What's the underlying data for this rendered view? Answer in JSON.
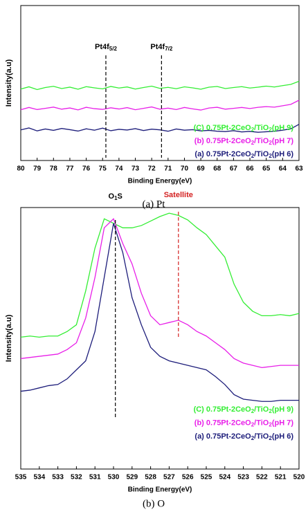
{
  "chart_data": [
    {
      "type": "line",
      "caption": "(a)  Pt",
      "xlabel": "Binding Energy(eV)",
      "ylabel": "Intensity(a.u)",
      "xlim": [
        80,
        63
      ],
      "ylim": [
        10,
        100
      ],
      "xticks": [
        80,
        79,
        78,
        77,
        76,
        75,
        74,
        73,
        72,
        71,
        70,
        69,
        68,
        67,
        66,
        65,
        64,
        63
      ],
      "annotations": [
        {
          "text": "Pt4f5/2",
          "x": 74.8,
          "color": "#000000"
        },
        {
          "text": "Pt4f7/2",
          "x": 71.4,
          "color": "#000000"
        }
      ],
      "x": [
        80,
        79.5,
        79,
        78.5,
        78,
        77.5,
        77,
        76.5,
        76,
        75.5,
        75,
        74.5,
        74,
        73.5,
        73,
        72.5,
        72,
        71.5,
        71,
        70.5,
        70,
        69.5,
        69,
        68.5,
        68,
        67.5,
        67,
        66.5,
        66,
        65.5,
        65,
        64.5,
        64,
        63.5,
        63
      ],
      "series": [
        {
          "name": "(C) 0.75Pt-2CeO2/TiO2(pH 9)",
          "color": "#33ee33",
          "values": [
            51.5,
            52.8,
            51.2,
            52.4,
            53.1,
            51.8,
            52.6,
            51.4,
            52.9,
            52.2,
            51.6,
            53.0,
            52.1,
            52.7,
            51.5,
            52.4,
            53.2,
            51.9,
            52.5,
            51.7,
            52.8,
            52.2,
            51.4,
            52.6,
            53.0,
            51.8,
            52.4,
            52.9,
            52.1,
            52.6,
            53.2,
            52.7,
            53.5,
            54.2,
            56.0
          ]
        },
        {
          "name": "(b) 0.75Pt-2CeO2/TiO2(pH 7)",
          "color": "#e81ee8",
          "values": [
            39.5,
            40.8,
            39.6,
            40.3,
            41.0,
            39.8,
            40.5,
            39.4,
            40.9,
            40.1,
            39.7,
            40.6,
            39.9,
            40.7,
            39.5,
            40.3,
            41.1,
            39.8,
            40.4,
            39.6,
            40.8,
            40.0,
            39.3,
            40.5,
            40.9,
            39.8,
            40.3,
            40.8,
            40.2,
            40.9,
            41.3,
            41.0,
            41.8,
            42.6,
            45.0
          ]
        },
        {
          "name": "(a) 0.75Pt-2CeO2/TiO2(pH 6)",
          "color": "#1c1c7a",
          "values": [
            27.8,
            28.9,
            27.2,
            28.3,
            27.5,
            28.6,
            27.9,
            27.1,
            28.4,
            27.6,
            28.8,
            27.3,
            28.1,
            27.7,
            28.5,
            27.4,
            28.2,
            27.8,
            27.0,
            28.3,
            27.6,
            27.9,
            27.2,
            27.5,
            27.0,
            26.8,
            27.3,
            26.6,
            26.9,
            26.4,
            26.7,
            27.0,
            27.6,
            28.4,
            31.0
          ]
        }
      ]
    },
    {
      "type": "line",
      "caption": "(b)  O",
      "xlabel": "Binding Energy(eV)",
      "ylabel": "Intensity(a.u)",
      "xlim": [
        535,
        520
      ],
      "ylim": [
        -16,
        100
      ],
      "xticks": [
        535,
        534,
        533,
        532,
        531,
        530,
        529,
        528,
        527,
        526,
        525,
        524,
        523,
        522,
        521,
        520
      ],
      "annotations": [
        {
          "text": "O1S",
          "x": 529.9,
          "color": "#000000"
        },
        {
          "text": "Satellite",
          "x": 526.5,
          "color": "#d42020"
        }
      ],
      "x": [
        535,
        534.5,
        534,
        533.5,
        533,
        532.5,
        532,
        531.5,
        531,
        530.5,
        530,
        529.5,
        529,
        528.5,
        528,
        527.5,
        527,
        526.5,
        526,
        525.5,
        525,
        524.5,
        524,
        523.5,
        523,
        522.5,
        522,
        521.5,
        521,
        520.5,
        520
      ],
      "series": [
        {
          "name": "(C) 0.75Pt-2CeO2/TiO2(pH 9)",
          "color": "#33ee33",
          "values": [
            42.5,
            43,
            42.5,
            43,
            43,
            45,
            48,
            63,
            82,
            95,
            93,
            91,
            91,
            92,
            94,
            96,
            97.5,
            96.5,
            94.5,
            91,
            88,
            83,
            78,
            66,
            58,
            54,
            52,
            52,
            52.5,
            52,
            53
          ]
        },
        {
          "name": "(b) 0.75Pt-2CeO2/TiO2(pH 7)",
          "color": "#e81ee8",
          "values": [
            33,
            33.5,
            34,
            34.5,
            35,
            37,
            40,
            51,
            69,
            91,
            95,
            84,
            75,
            62,
            52,
            48,
            49,
            50,
            48,
            45,
            43,
            40,
            37,
            33,
            31,
            30,
            29,
            29.5,
            30,
            30,
            30
          ]
        },
        {
          "name": "(a) 0.75Pt-2CeO2/TiO2(pH 6)",
          "color": "#1c1c7a",
          "values": [
            18.5,
            19,
            20,
            21,
            21.5,
            24,
            28,
            32,
            45,
            69,
            93,
            80,
            60,
            48,
            38,
            34,
            32,
            31,
            30,
            29,
            28,
            25,
            21.5,
            17,
            15,
            14.5,
            14,
            14,
            14.5,
            14.5,
            14.5
          ]
        }
      ]
    }
  ]
}
